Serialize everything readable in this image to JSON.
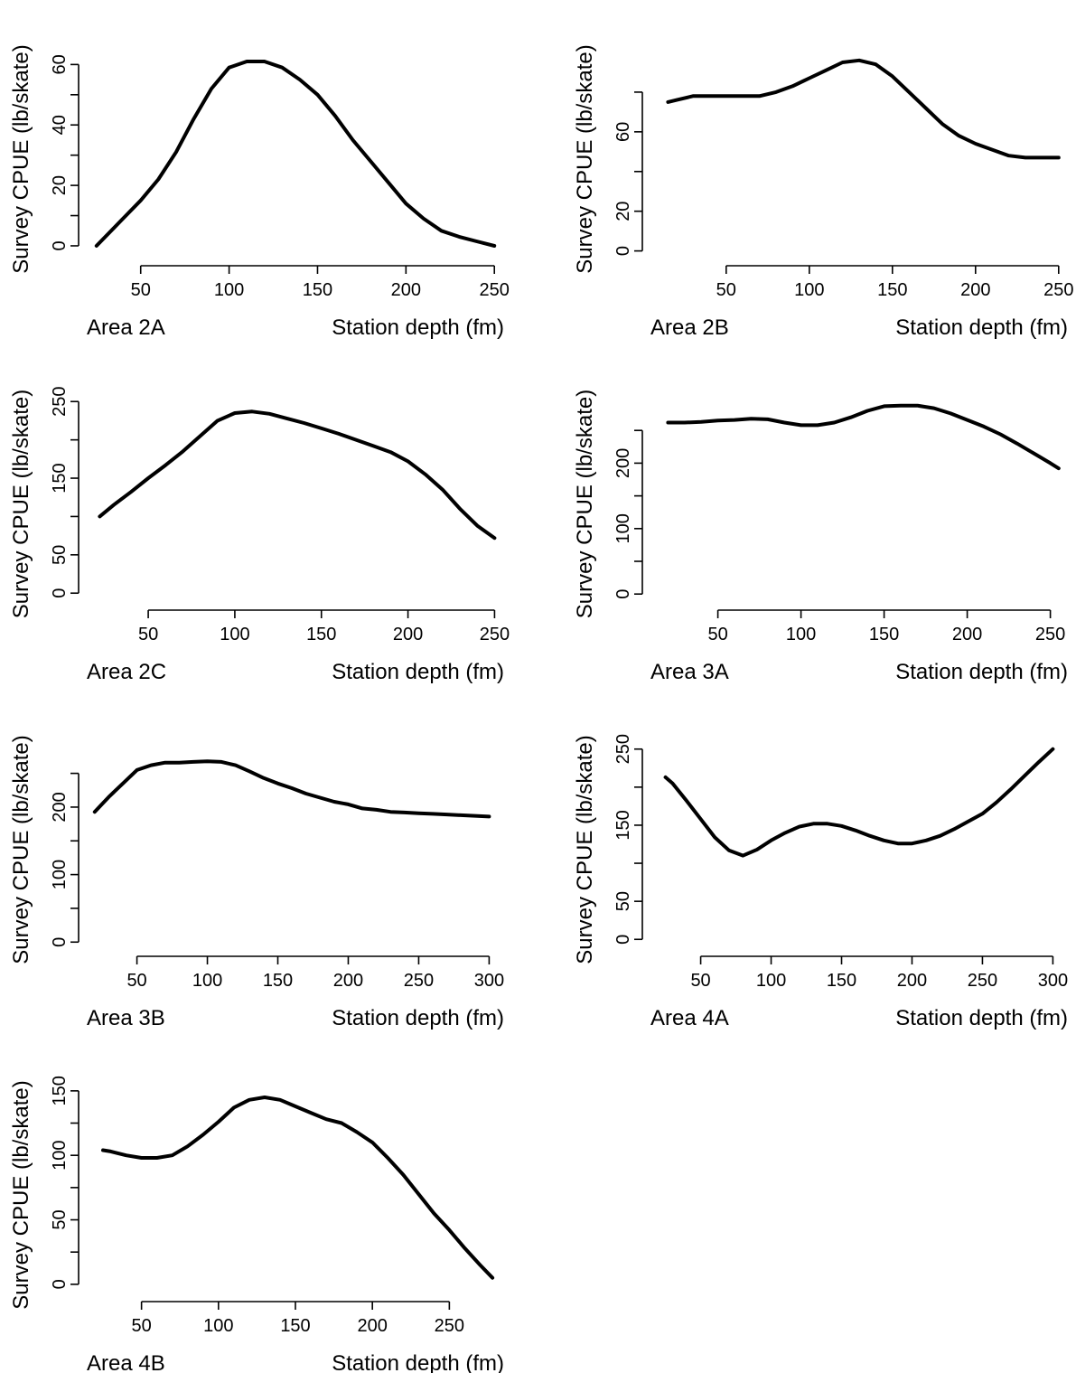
{
  "chart_data": [
    {
      "type": "line",
      "panel_label": "Area 2A",
      "xlabel": "Station depth (fm)",
      "ylabel": "Survey CPUE (lb/skate)",
      "xlim": [
        20,
        255
      ],
      "ylim": [
        -3,
        64
      ],
      "xticks": [
        50,
        100,
        150,
        200,
        250
      ],
      "yticks": [
        0,
        20,
        40,
        60
      ],
      "yminor": [
        10,
        30,
        50
      ],
      "series": [
        {
          "x": [
            25,
            40,
            50,
            60,
            70,
            80,
            90,
            100,
            110,
            120,
            130,
            140,
            150,
            160,
            170,
            180,
            190,
            200,
            210,
            220,
            230,
            240,
            250
          ],
          "y": [
            0,
            9,
            15,
            22,
            31,
            42,
            52,
            59,
            61,
            61,
            59,
            55,
            50,
            43,
            35,
            28,
            21,
            14,
            9,
            5,
            3,
            1.5,
            0
          ]
        }
      ]
    },
    {
      "type": "line",
      "panel_label": "Area 2B",
      "xlabel": "Station depth (fm)",
      "ylabel": "Survey CPUE (lb/skate)",
      "xlim": [
        5,
        255
      ],
      "ylim": [
        -2,
        100
      ],
      "xticks": [
        50,
        100,
        150,
        200,
        250
      ],
      "yticks": [
        0,
        20,
        60
      ],
      "yminor": [
        40,
        80
      ],
      "series": [
        {
          "x": [
            15,
            20,
            30,
            40,
            50,
            60,
            70,
            80,
            90,
            100,
            110,
            120,
            130,
            140,
            150,
            160,
            170,
            180,
            190,
            200,
            210,
            220,
            230,
            240,
            250
          ],
          "y": [
            75,
            76,
            78,
            78,
            78,
            78,
            78,
            80,
            83,
            87,
            91,
            95,
            96,
            94,
            88,
            80,
            72,
            64,
            58,
            54,
            51,
            48,
            47,
            47,
            47
          ]
        }
      ]
    },
    {
      "type": "line",
      "panel_label": "Area 2C",
      "xlabel": "Station depth (fm)",
      "ylabel": "Survey CPUE (lb/skate)",
      "xlim": [
        15,
        255
      ],
      "ylim": [
        -8,
        255
      ],
      "xticks": [
        50,
        100,
        150,
        200,
        250
      ],
      "yticks": [
        0,
        50,
        150,
        250
      ],
      "yminor": [
        100,
        200
      ],
      "series": [
        {
          "x": [
            22,
            30,
            40,
            50,
            60,
            70,
            80,
            90,
            100,
            110,
            120,
            130,
            140,
            150,
            160,
            170,
            180,
            190,
            200,
            210,
            220,
            230,
            240,
            250
          ],
          "y": [
            100,
            115,
            132,
            150,
            167,
            185,
            205,
            225,
            235,
            237,
            234,
            228,
            222,
            215,
            208,
            200,
            192,
            184,
            172,
            155,
            135,
            110,
            88,
            72
          ]
        }
      ]
    },
    {
      "type": "line",
      "panel_label": "Area 3A",
      "xlabel": "Station depth (fm)",
      "ylabel": "Survey CPUE (lb/skate)",
      "xlim": [
        10,
        260
      ],
      "ylim": [
        -8,
        300
      ],
      "xticks": [
        50,
        100,
        150,
        200,
        250
      ],
      "yticks": [
        0,
        100,
        200
      ],
      "yminor": [
        50,
        150,
        250
      ],
      "series": [
        {
          "x": [
            20,
            30,
            40,
            50,
            60,
            70,
            80,
            90,
            100,
            110,
            120,
            130,
            140,
            150,
            160,
            170,
            180,
            190,
            200,
            210,
            220,
            230,
            240,
            250,
            255
          ],
          "y": [
            262,
            262,
            263,
            265,
            266,
            268,
            267,
            262,
            258,
            258,
            262,
            270,
            280,
            287,
            288,
            288,
            284,
            276,
            266,
            256,
            244,
            230,
            215,
            200,
            192
          ]
        }
      ]
    },
    {
      "type": "line",
      "panel_label": "Area 3B",
      "xlabel": "Station depth (fm)",
      "ylabel": "Survey CPUE (lb/skate)",
      "xlim": [
        15,
        310
      ],
      "ylim": [
        -5,
        295
      ],
      "xticks": [
        50,
        100,
        150,
        200,
        250,
        300
      ],
      "yticks": [
        0,
        100,
        200
      ],
      "yminor": [
        50,
        150,
        250
      ],
      "series": [
        {
          "x": [
            20,
            30,
            40,
            50,
            60,
            70,
            80,
            90,
            100,
            110,
            120,
            130,
            140,
            150,
            160,
            170,
            180,
            190,
            200,
            210,
            220,
            230,
            240,
            250,
            260,
            270,
            280,
            290,
            300
          ],
          "y": [
            193,
            215,
            235,
            255,
            262,
            266,
            266,
            267,
            268,
            267,
            262,
            253,
            243,
            235,
            228,
            220,
            214,
            208,
            204,
            198,
            196,
            193,
            192,
            191,
            190,
            189,
            188,
            187,
            186
          ]
        }
      ]
    },
    {
      "type": "line",
      "panel_label": "Area 4A",
      "xlabel": "Station depth (fm)",
      "ylabel": "Survey CPUE (lb/skate)",
      "xlim": [
        15,
        310
      ],
      "ylim": [
        -8,
        258
      ],
      "xticks": [
        50,
        100,
        150,
        200,
        250,
        300
      ],
      "yticks": [
        0,
        50,
        150,
        250
      ],
      "yminor": [
        100,
        200
      ],
      "series": [
        {
          "x": [
            25,
            30,
            40,
            50,
            60,
            70,
            80,
            90,
            100,
            110,
            120,
            130,
            140,
            150,
            160,
            170,
            180,
            190,
            200,
            210,
            220,
            230,
            240,
            250,
            260,
            270,
            280,
            290,
            300
          ],
          "y": [
            213,
            205,
            182,
            158,
            134,
            117,
            110,
            118,
            130,
            140,
            148,
            152,
            152,
            149,
            143,
            136,
            130,
            126,
            126,
            130,
            136,
            145,
            155,
            165,
            180,
            197,
            215,
            233,
            250
          ]
        }
      ]
    },
    {
      "type": "line",
      "panel_label": "Area 4B",
      "xlabel": "Station depth (fm)",
      "ylabel": "Survey CPUE (lb/skate)",
      "xlim": [
        15,
        285
      ],
      "ylim": [
        -5,
        152
      ],
      "xticks": [
        50,
        100,
        150,
        200,
        250
      ],
      "yticks": [
        0,
        50,
        100,
        150
      ],
      "yminor": [
        25,
        75,
        125
      ],
      "series": [
        {
          "x": [
            25,
            30,
            40,
            50,
            60,
            70,
            80,
            90,
            100,
            110,
            120,
            130,
            140,
            150,
            160,
            170,
            180,
            190,
            200,
            210,
            220,
            230,
            240,
            250,
            260,
            270,
            278
          ],
          "y": [
            104,
            103,
            100,
            98,
            98,
            100,
            107,
            116,
            126,
            137,
            143,
            145,
            143,
            138,
            133,
            128,
            125,
            118,
            110,
            98,
            85,
            70,
            55,
            42,
            28,
            15,
            5
          ]
        }
      ]
    }
  ]
}
